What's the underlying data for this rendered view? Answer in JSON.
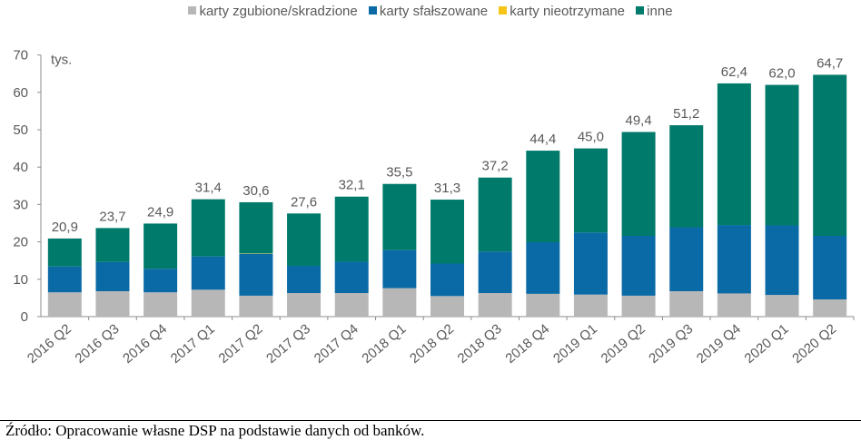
{
  "chart_data": {
    "type": "bar",
    "stacked": true,
    "unit_label": "tys.",
    "ylim": [
      0,
      70
    ],
    "yticks": [
      0,
      10,
      20,
      30,
      40,
      50,
      60,
      70
    ],
    "grid": false,
    "legend_position": "top-center",
    "categories": [
      "2016 Q2",
      "2016 Q3",
      "2016 Q4",
      "2017 Q1",
      "2017 Q2",
      "2017 Q3",
      "2017 Q4",
      "2018 Q1",
      "2018 Q2",
      "2018 Q3",
      "2018 Q4",
      "2019 Q1",
      "2019 Q2",
      "2019 Q3",
      "2019 Q4",
      "2020 Q1",
      "2020 Q2"
    ],
    "series": [
      {
        "name": "karty zgubione/skradzione",
        "color": "#b7b7b7",
        "values": [
          6.5,
          6.8,
          6.5,
          7.2,
          5.6,
          6.3,
          6.3,
          7.6,
          5.5,
          6.3,
          6.1,
          5.9,
          5.6,
          6.8,
          6.2,
          5.8,
          4.6
        ]
      },
      {
        "name": "karty sfałszowane",
        "color": "#0a6aa6",
        "values": [
          6.9,
          7.8,
          6.3,
          8.9,
          11.2,
          7.3,
          8.4,
          10.2,
          8.7,
          11.1,
          13.8,
          16.6,
          16.0,
          17.1,
          18.3,
          18.6,
          17.0
        ]
      },
      {
        "name": "karty nieotrzymane",
        "color": "#f5c518",
        "values": [
          0,
          0,
          0,
          0,
          0.1,
          0,
          0,
          0,
          0,
          0,
          0,
          0,
          0,
          0,
          0,
          0,
          0
        ]
      },
      {
        "name": "inne",
        "color": "#007a6a",
        "values": [
          7.5,
          9.1,
          12.1,
          15.3,
          13.7,
          14.0,
          17.4,
          17.7,
          17.1,
          19.8,
          24.5,
          22.5,
          27.8,
          27.3,
          37.9,
          37.6,
          43.1
        ]
      }
    ],
    "totals": [
      "20,9",
      "23,7",
      "24,9",
      "31,4",
      "30,6",
      "27,6",
      "32,1",
      "35,5",
      "31,3",
      "37,2",
      "44,4",
      "45,0",
      "49,4",
      "51,2",
      "62,4",
      "62,0",
      "64,7"
    ]
  },
  "source": "Źródło: Opracowanie własne DSP na podstawie danych od banków."
}
